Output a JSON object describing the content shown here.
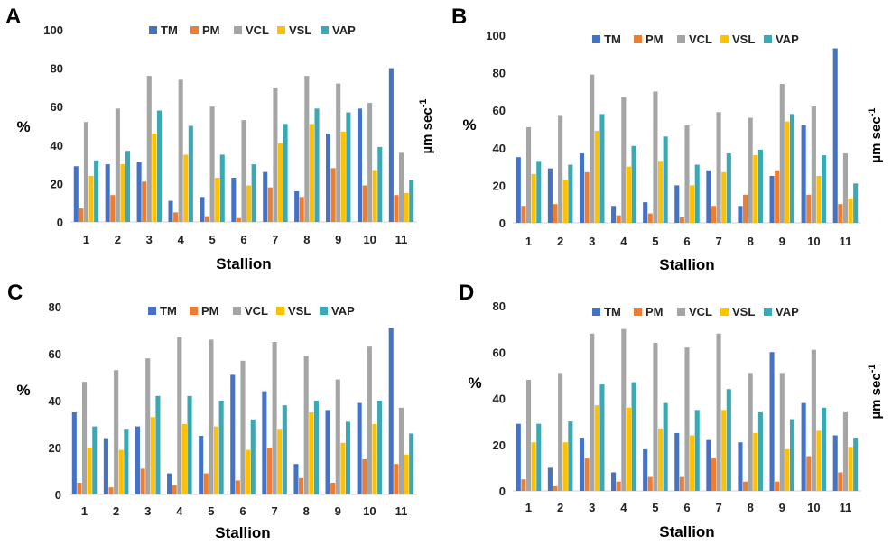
{
  "colors": {
    "TM": "#4472C4",
    "PM": "#ED7D31",
    "VCL": "#A5A5A5",
    "VSL": "#FFC000",
    "VAP": "#3AA9B5"
  },
  "chart_data": [
    {
      "panel": "A",
      "type": "bar",
      "xlabel": "Stallion",
      "ylabel": "%",
      "y2label": "µm sec",
      "y2label_sup": "-1",
      "ylim": [
        0,
        100
      ],
      "yticks": [
        0,
        20,
        40,
        60,
        80,
        100
      ],
      "legend": "top-center",
      "grid": false,
      "categories": [
        "1",
        "2",
        "3",
        "4",
        "5",
        "6",
        "7",
        "8",
        "9",
        "10",
        "11"
      ],
      "series": [
        {
          "name": "TM",
          "values": [
            29,
            30,
            31,
            11,
            13,
            23,
            26,
            16,
            46,
            59,
            80
          ]
        },
        {
          "name": "PM",
          "values": [
            7,
            14,
            21,
            5,
            3,
            2,
            18,
            13,
            28,
            19,
            14
          ]
        },
        {
          "name": "VCL",
          "values": [
            52,
            59,
            76,
            74,
            60,
            53,
            70,
            76,
            72,
            62,
            36
          ]
        },
        {
          "name": "VSL",
          "values": [
            24,
            30,
            46,
            35,
            23,
            19,
            41,
            51,
            47,
            27,
            15
          ]
        },
        {
          "name": "VAP",
          "values": [
            32,
            37,
            58,
            50,
            35,
            30,
            51,
            59,
            57,
            39,
            22
          ]
        }
      ]
    },
    {
      "panel": "B",
      "type": "bar",
      "xlabel": "Stallion",
      "ylabel": "%",
      "y2label": "µm sec",
      "y2label_sup": "-1",
      "ylim": [
        0,
        100
      ],
      "yticks": [
        0,
        20,
        40,
        60,
        80,
        100
      ],
      "legend": "top-center",
      "grid": false,
      "categories": [
        "1",
        "2",
        "3",
        "4",
        "5",
        "6",
        "7",
        "8",
        "9",
        "10",
        "11"
      ],
      "series": [
        {
          "name": "TM",
          "values": [
            35,
            29,
            37,
            9,
            11,
            20,
            28,
            9,
            25,
            52,
            93
          ]
        },
        {
          "name": "PM",
          "values": [
            9,
            10,
            27,
            4,
            5,
            3,
            9,
            15,
            28,
            15,
            10
          ]
        },
        {
          "name": "VCL",
          "values": [
            51,
            57,
            79,
            67,
            70,
            52,
            59,
            56,
            74,
            62,
            37
          ]
        },
        {
          "name": "VSL",
          "values": [
            26,
            23,
            49,
            30,
            33,
            20,
            27,
            36,
            54,
            25,
            13
          ]
        },
        {
          "name": "VAP",
          "values": [
            33,
            31,
            58,
            41,
            46,
            31,
            37,
            39,
            58,
            36,
            21
          ]
        }
      ]
    },
    {
      "panel": "C",
      "type": "bar",
      "xlabel": "Stallion",
      "ylabel": "%",
      "y2label": "",
      "y2label_sup": "",
      "ylim": [
        0,
        80
      ],
      "yticks": [
        0,
        20,
        40,
        60,
        80
      ],
      "legend": "top-center",
      "grid": false,
      "categories": [
        "1",
        "2",
        "3",
        "4",
        "5",
        "6",
        "7",
        "8",
        "9",
        "10",
        "11"
      ],
      "series": [
        {
          "name": "TM",
          "values": [
            35,
            24,
            29,
            9,
            25,
            51,
            44,
            13,
            36,
            39,
            71
          ]
        },
        {
          "name": "PM",
          "values": [
            5,
            3,
            11,
            4,
            9,
            6,
            20,
            7,
            5,
            15,
            13
          ]
        },
        {
          "name": "VCL",
          "values": [
            48,
            53,
            58,
            67,
            66,
            57,
            65,
            59,
            49,
            63,
            37
          ]
        },
        {
          "name": "VSL",
          "values": [
            20,
            19,
            33,
            30,
            29,
            19,
            28,
            35,
            22,
            30,
            17
          ]
        },
        {
          "name": "VAP",
          "values": [
            29,
            28,
            42,
            42,
            40,
            32,
            38,
            40,
            31,
            40,
            26
          ]
        }
      ]
    },
    {
      "panel": "D",
      "type": "bar",
      "xlabel": "Stallion",
      "ylabel": "%",
      "y2label": "µm sec",
      "y2label_sup": "-1",
      "ylim": [
        0,
        80
      ],
      "yticks": [
        0,
        20,
        40,
        60,
        80
      ],
      "legend": "top-center",
      "grid": false,
      "categories": [
        "1",
        "2",
        "3",
        "4",
        "5",
        "6",
        "7",
        "8",
        "9",
        "10",
        "11"
      ],
      "series": [
        {
          "name": "TM",
          "values": [
            29,
            10,
            23,
            8,
            18,
            25,
            22,
            21,
            60,
            38,
            24
          ]
        },
        {
          "name": "PM",
          "values": [
            5,
            2,
            14,
            4,
            6,
            6,
            14,
            4,
            4,
            15,
            8
          ]
        },
        {
          "name": "VCL",
          "values": [
            48,
            51,
            68,
            70,
            64,
            62,
            68,
            51,
            51,
            61,
            34
          ]
        },
        {
          "name": "VSL",
          "values": [
            21,
            21,
            37,
            36,
            27,
            24,
            35,
            25,
            18,
            26,
            19
          ]
        },
        {
          "name": "VAP",
          "values": [
            29,
            30,
            46,
            47,
            38,
            35,
            44,
            34,
            31,
            36,
            23
          ]
        }
      ]
    }
  ]
}
